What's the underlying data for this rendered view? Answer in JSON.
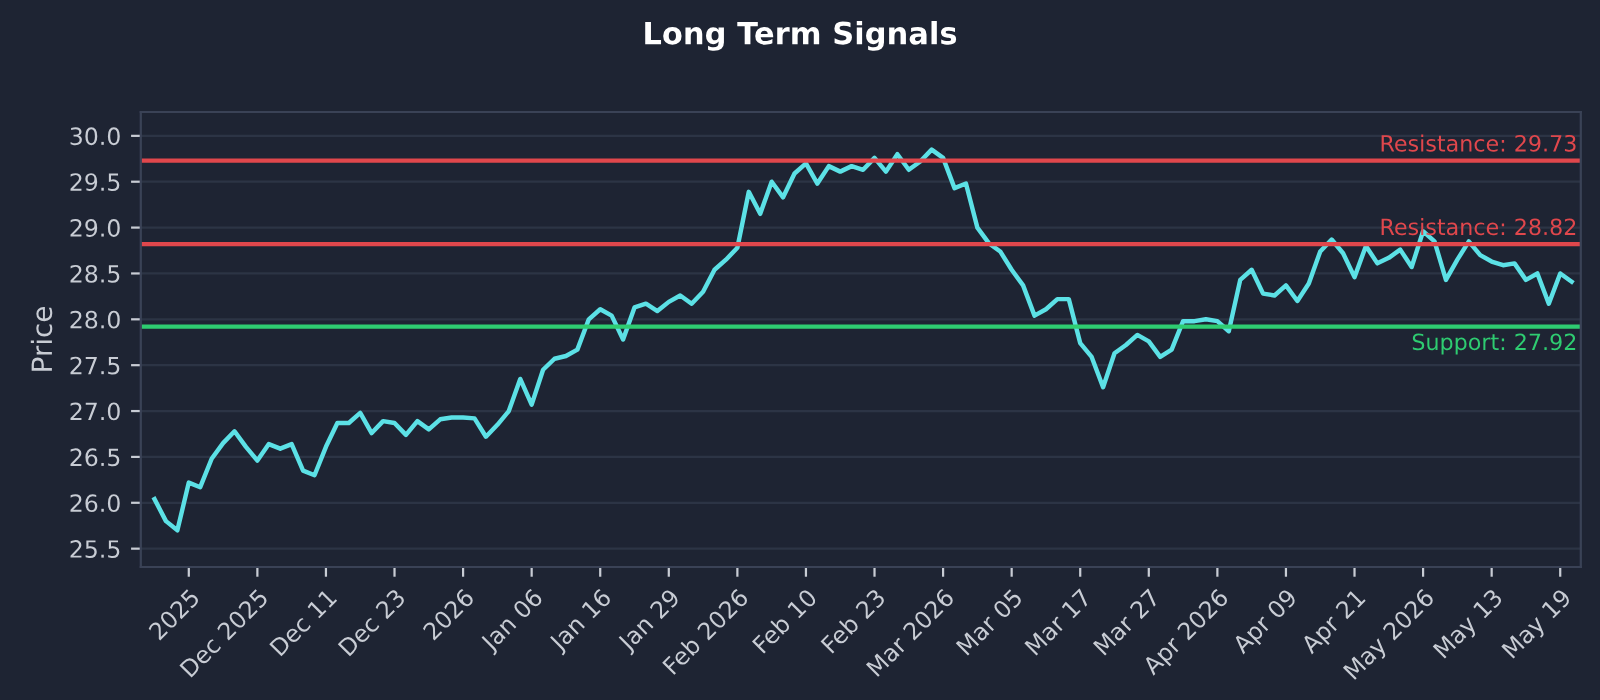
{
  "chart_data": {
    "type": "line",
    "title": "Long Term Signals",
    "ylabel": "Price",
    "categories": [
      null,
      null,
      null,
      "2025",
      null,
      null,
      null,
      null,
      null,
      "Dec 2025",
      null,
      null,
      null,
      null,
      null,
      "Dec 11",
      null,
      null,
      null,
      null,
      null,
      "Dec 23",
      null,
      null,
      null,
      null,
      null,
      "2026",
      null,
      null,
      null,
      null,
      null,
      "Jan 06",
      null,
      null,
      null,
      null,
      null,
      "Jan 16",
      null,
      null,
      null,
      null,
      null,
      "Jan 29",
      null,
      null,
      null,
      null,
      null,
      "Feb 2026",
      null,
      null,
      null,
      null,
      null,
      "Feb 10",
      null,
      null,
      null,
      null,
      null,
      "Feb 23",
      null,
      null,
      null,
      null,
      null,
      "Mar 2026",
      null,
      null,
      null,
      null,
      null,
      "Mar 05",
      null,
      null,
      null,
      null,
      null,
      "Mar 17",
      null,
      null,
      null,
      null,
      null,
      "Mar 27",
      null,
      null,
      null,
      null,
      null,
      "Apr 2026",
      null,
      null,
      null,
      null,
      null,
      "Apr 09",
      null,
      null,
      null,
      null,
      null,
      "Apr 21",
      null,
      null,
      null,
      null,
      null,
      "May 2026",
      null,
      null,
      null,
      null,
      null,
      "May 13",
      null,
      null,
      null,
      null,
      null,
      "May 19",
      null
    ],
    "series": [
      {
        "color": "#5ce1e6",
        "values": [
          26.04,
          25.8,
          25.7,
          26.22,
          26.17,
          26.48,
          26.65,
          26.78,
          26.61,
          26.46,
          26.64,
          26.59,
          26.64,
          26.35,
          26.3,
          26.61,
          26.87,
          26.87,
          26.98,
          26.76,
          26.89,
          26.87,
          26.74,
          26.89,
          26.8,
          26.91,
          26.93,
          26.93,
          26.92,
          26.72,
          26.85,
          27.0,
          27.35,
          27.07,
          27.45,
          27.57,
          27.6,
          27.67,
          28.0,
          28.11,
          28.04,
          27.78,
          28.13,
          28.17,
          28.09,
          28.19,
          28.26,
          28.17,
          28.3,
          28.54,
          28.65,
          28.78,
          29.39,
          29.15,
          29.5,
          29.33,
          29.59,
          29.7,
          29.48,
          29.67,
          29.61,
          29.67,
          29.63,
          29.76,
          29.61,
          29.8,
          29.63,
          29.72,
          29.85,
          29.76,
          29.43,
          29.48,
          29.0,
          28.83,
          28.74,
          28.54,
          28.37,
          28.04,
          28.11,
          28.22,
          28.22,
          27.74,
          27.59,
          27.26,
          27.63,
          27.72,
          27.83,
          27.76,
          27.59,
          27.67,
          27.98,
          27.98,
          28.0,
          27.98,
          27.87,
          28.43,
          28.54,
          28.28,
          28.26,
          28.37,
          28.2,
          28.39,
          28.74,
          28.87,
          28.72,
          28.46,
          28.8,
          28.61,
          28.67,
          28.76,
          28.57,
          28.96,
          28.85,
          28.43,
          28.65,
          28.85,
          28.7,
          28.63,
          28.59,
          28.61,
          28.43,
          28.5,
          28.17,
          28.5,
          28.41
        ]
      }
    ],
    "ylim": [
      25.3,
      30.26
    ],
    "yticks": [
      25.5,
      {
        "value": 26,
        "label": "26.0"
      },
      26.5,
      {
        "value": 27,
        "label": "27.0"
      },
      27.5,
      {
        "value": 28,
        "label": "28.0"
      },
      28.5,
      {
        "value": 29,
        "label": "29.0"
      },
      29.5,
      {
        "value": 30,
        "label": "30.0"
      }
    ],
    "ref_lines": [
      {
        "axis": "y",
        "value": 29.73,
        "label": "Resistance: 29.73",
        "color": "#e0474c"
      },
      {
        "axis": "y",
        "value": 28.82,
        "label": "Resistance: 28.82",
        "color": "#e0474c"
      },
      {
        "axis": "y",
        "value": 27.92,
        "label": "Support: 27.92",
        "color": "#2ecc71"
      }
    ],
    "grid": "y",
    "marker": "none",
    "line_style": "solid",
    "legend": false
  }
}
